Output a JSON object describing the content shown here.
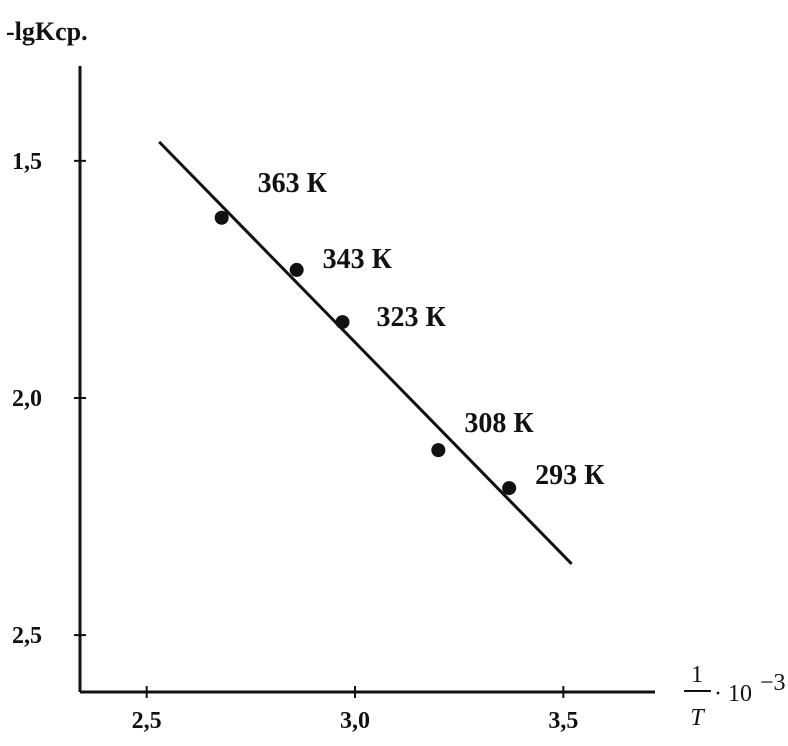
{
  "chart_data": {
    "type": "scatter",
    "ylabel": "-lgKcp.",
    "xlabel": {
      "numerator": "1",
      "denominator": "T",
      "factor": "· 10",
      "exponent": "−3"
    },
    "xlim": [
      2.34,
      3.72
    ],
    "ylim": [
      1.3,
      2.62
    ],
    "y_inverted": true,
    "xticks": [
      {
        "value": 2.5,
        "label": "2,5"
      },
      {
        "value": 3.0,
        "label": "3,0"
      },
      {
        "value": 3.5,
        "label": "3,5"
      }
    ],
    "yticks": [
      {
        "value": 1.5,
        "label": "1,5"
      },
      {
        "value": 2.0,
        "label": "2,0"
      },
      {
        "value": 2.5,
        "label": "2,5"
      }
    ],
    "points": [
      {
        "x": 2.68,
        "y": 1.62,
        "label": "363 К"
      },
      {
        "x": 2.86,
        "y": 1.73,
        "label": "343 К"
      },
      {
        "x": 2.97,
        "y": 1.84,
        "label": "323 К"
      },
      {
        "x": 3.2,
        "y": 2.11,
        "label": "308 К"
      },
      {
        "x": 3.37,
        "y": 2.19,
        "label": "293 К"
      }
    ],
    "fit_line": {
      "x": [
        2.53,
        3.52
      ],
      "y": [
        1.46,
        2.35
      ]
    },
    "grid": false,
    "legend": "none"
  }
}
